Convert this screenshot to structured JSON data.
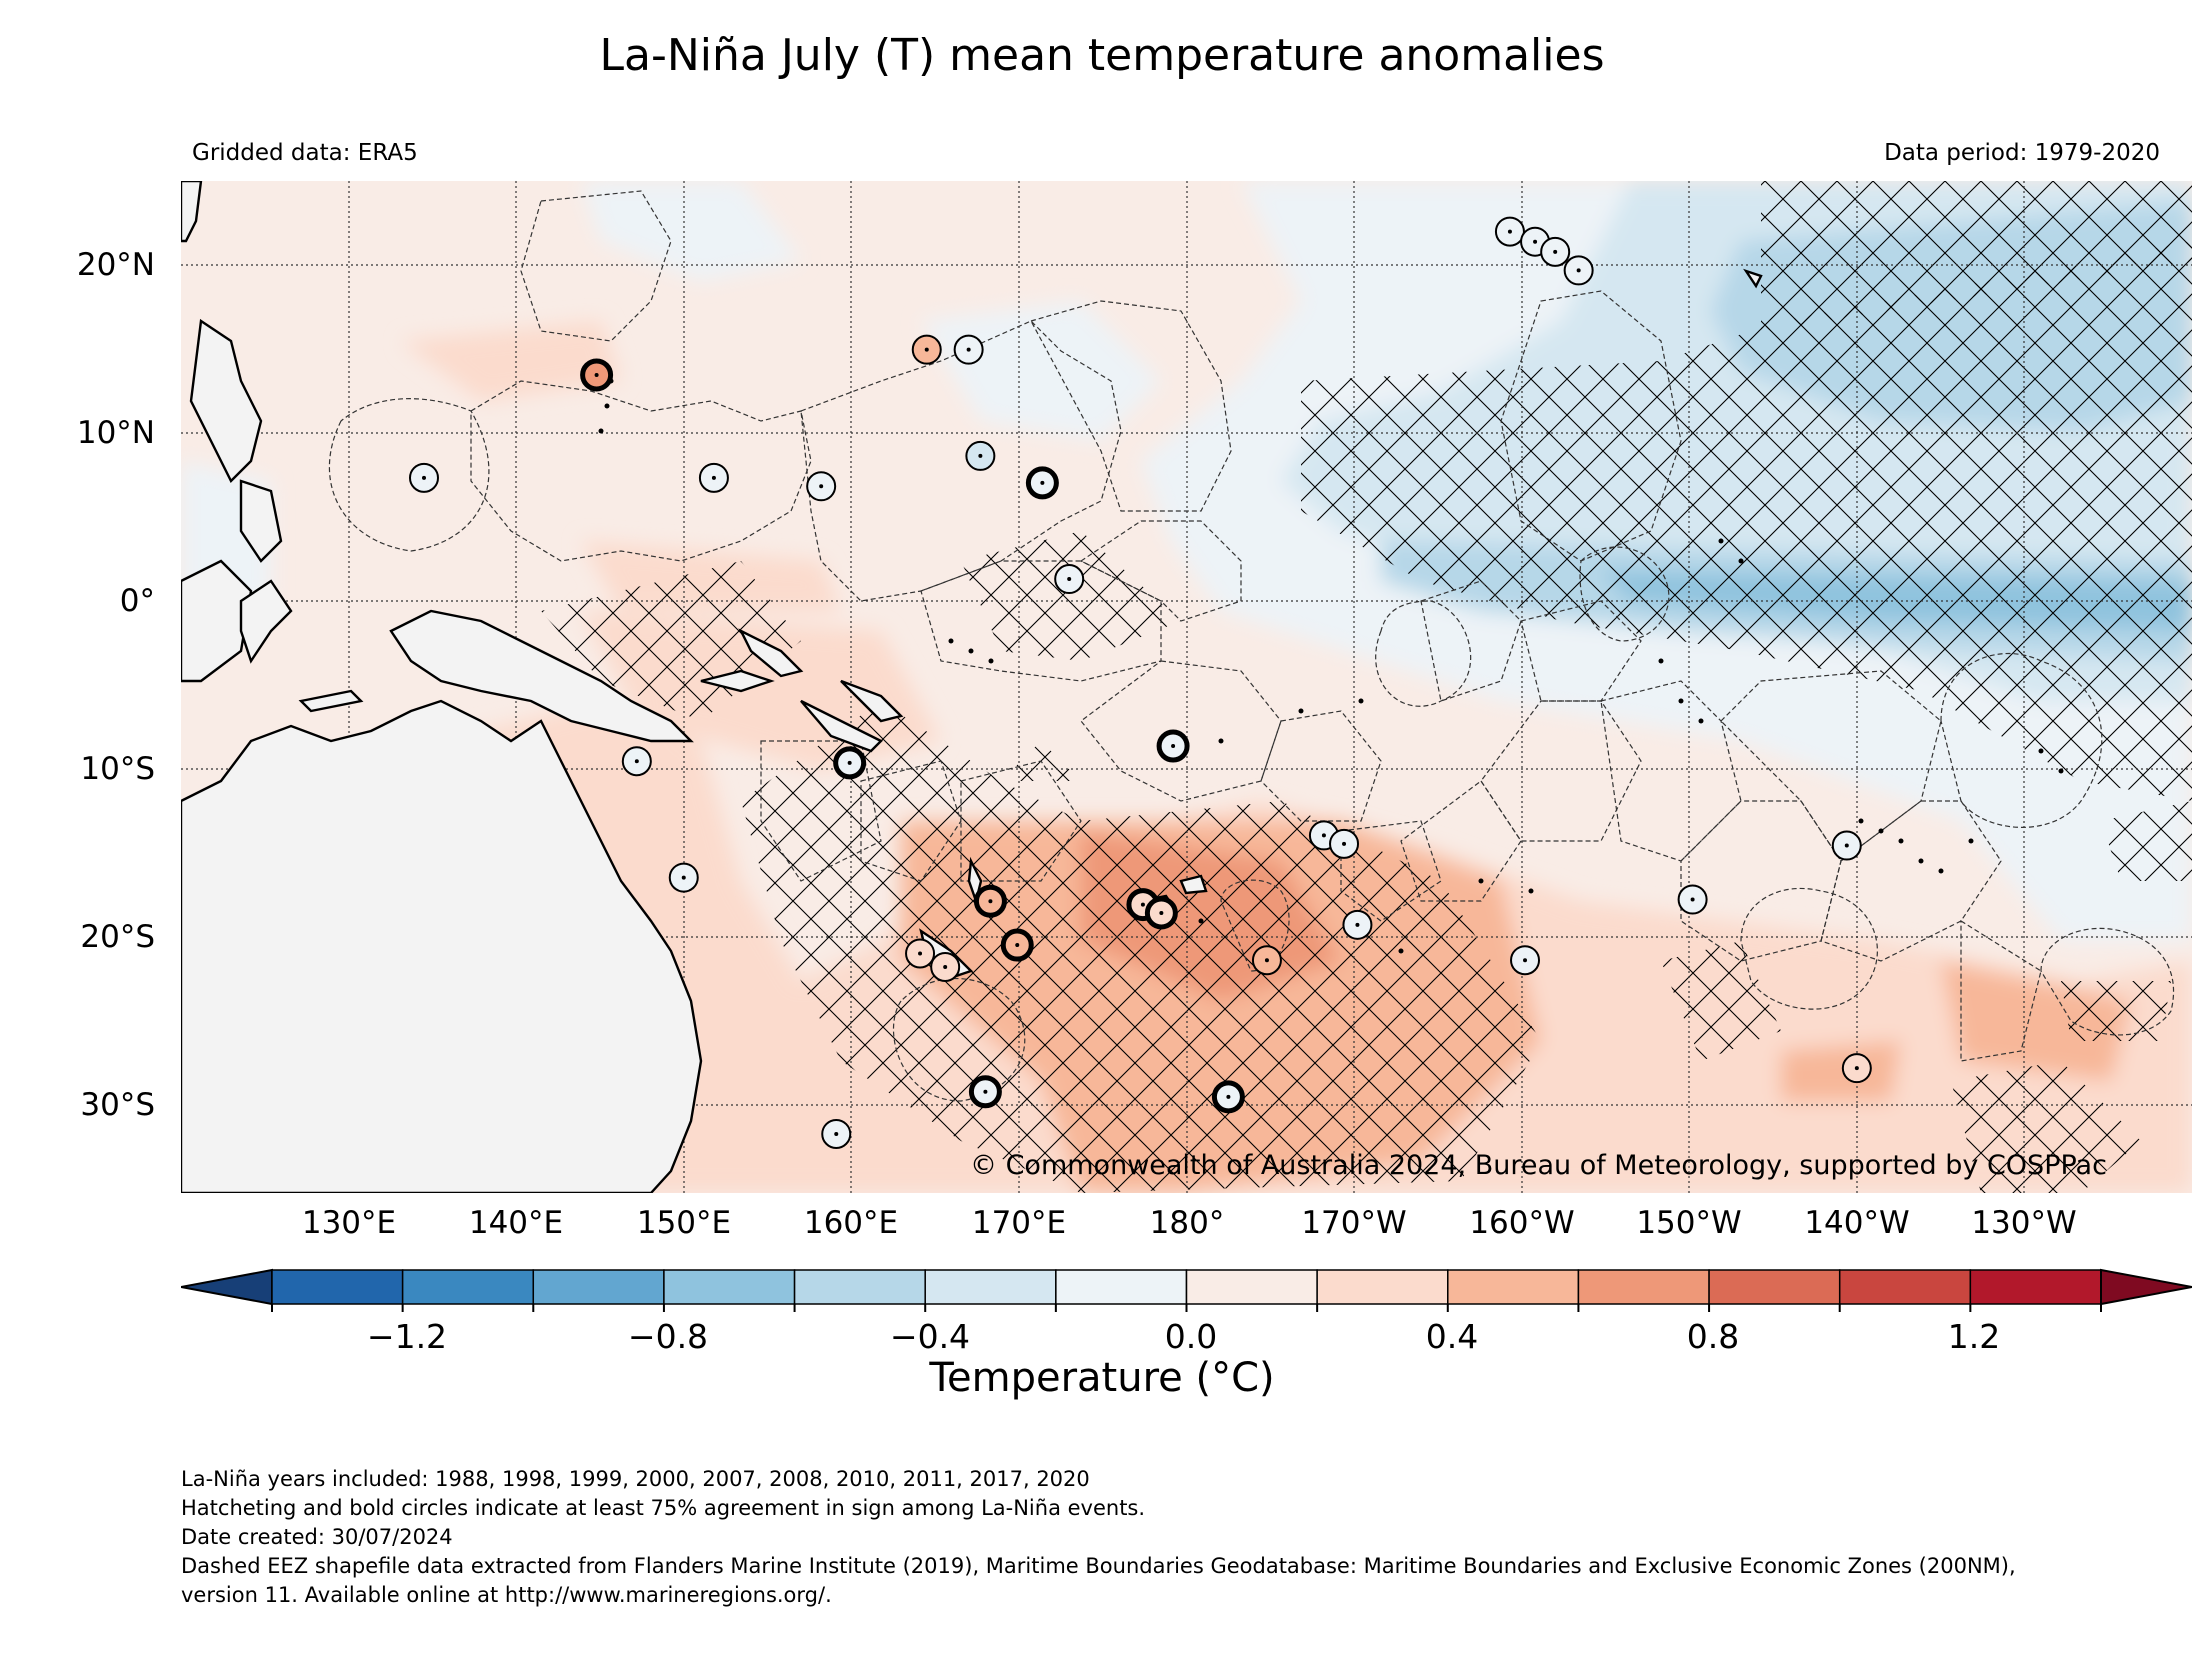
{
  "title": "La-Niña July (T) mean temperature anomalies",
  "header": {
    "source": "Gridded data: ERA5",
    "period": "Data period: 1979-2020"
  },
  "map": {
    "extent": {
      "lon": [
        120,
        240
      ],
      "lat": [
        -35,
        25
      ]
    },
    "lat_labels": [
      "20°N",
      "10°N",
      "0°",
      "10°S",
      "20°S",
      "30°S"
    ],
    "lat_values": [
      20,
      10,
      0,
      -10,
      -20,
      -30
    ],
    "lon_labels": [
      "130°E",
      "140°E",
      "150°E",
      "160°E",
      "170°E",
      "180°",
      "170°W",
      "160°W",
      "150°W",
      "140°W",
      "130°W"
    ],
    "lon_values": [
      130,
      140,
      150,
      160,
      170,
      180,
      190,
      200,
      210,
      220,
      230
    ],
    "copyright": "© Commonwealth of Australia 2024, Bureau of Meteorology, supported by COSPPac",
    "gridlines": true,
    "hatching": "75% sign agreement",
    "station_circles": [
      {
        "lon": 164.5,
        "lat": 15.0,
        "anomaly": 0.5,
        "bold": false
      },
      {
        "lon": 144.8,
        "lat": 13.5,
        "anomaly": 0.6,
        "bold": true
      },
      {
        "lon": 134.5,
        "lat": 7.4,
        "anomaly": 0.0,
        "bold": false
      },
      {
        "lon": 151.8,
        "lat": 7.4,
        "anomaly": 0.0,
        "bold": false
      },
      {
        "lon": 158.2,
        "lat": 6.9,
        "anomaly": 0.0,
        "bold": false
      },
      {
        "lon": 167.7,
        "lat": 8.7,
        "anomaly": -0.2,
        "bold": false
      },
      {
        "lon": 171.4,
        "lat": 7.1,
        "anomaly": 0.0,
        "bold": true
      },
      {
        "lon": 173.0,
        "lat": 1.4,
        "anomaly": 0.0,
        "bold": false
      },
      {
        "lon": 167.0,
        "lat": 15.0,
        "anomaly": 0.0,
        "bold": false
      },
      {
        "lon": 199.3,
        "lat": 22.0,
        "anomaly": 0.0,
        "bold": false
      },
      {
        "lon": 200.8,
        "lat": 21.4,
        "anomaly": 0.0,
        "bold": false
      },
      {
        "lon": 202.0,
        "lat": 20.8,
        "anomaly": 0.0,
        "bold": false
      },
      {
        "lon": 203.4,
        "lat": 19.7,
        "anomaly": 0.0,
        "bold": false
      },
      {
        "lon": 179.2,
        "lat": -8.5,
        "anomaly": 0.0,
        "bold": true
      },
      {
        "lon": 159.9,
        "lat": -9.5,
        "anomaly": 0.0,
        "bold": true
      },
      {
        "lon": 147.2,
        "lat": -9.4,
        "anomaly": 0.0,
        "bold": false
      },
      {
        "lon": 150.0,
        "lat": -16.3,
        "anomaly": 0.0,
        "bold": false
      },
      {
        "lon": 168.3,
        "lat": -17.7,
        "anomaly": 0.5,
        "bold": true
      },
      {
        "lon": 169.9,
        "lat": -20.3,
        "anomaly": 0.5,
        "bold": true
      },
      {
        "lon": 164.1,
        "lat": -20.8,
        "anomaly": 0.4,
        "bold": false
      },
      {
        "lon": 165.6,
        "lat": -21.6,
        "anomaly": 0.4,
        "bold": false
      },
      {
        "lon": 177.4,
        "lat": -17.9,
        "anomaly": 0.4,
        "bold": true
      },
      {
        "lon": 178.5,
        "lat": -18.4,
        "anomaly": 0.4,
        "bold": true
      },
      {
        "lon": 188.2,
        "lat": -13.8,
        "anomaly": 0.0,
        "bold": false
      },
      {
        "lon": 189.4,
        "lat": -14.3,
        "anomaly": 0.0,
        "bold": false
      },
      {
        "lon": 184.8,
        "lat": -21.2,
        "anomaly": 0.5,
        "bold": false
      },
      {
        "lon": 190.2,
        "lat": -19.1,
        "anomaly": 0.0,
        "bold": false
      },
      {
        "lon": 200.2,
        "lat": -21.2,
        "anomaly": 0.0,
        "bold": false
      },
      {
        "lon": 210.2,
        "lat": -17.6,
        "anomaly": 0.0,
        "bold": false
      },
      {
        "lon": 219.4,
        "lat": -14.4,
        "anomaly": 0.0,
        "bold": false
      },
      {
        "lon": 168.0,
        "lat": -29.0,
        "anomaly": 0.0,
        "bold": true
      },
      {
        "lon": 182.5,
        "lat": -29.3,
        "anomaly": 0.0,
        "bold": true
      },
      {
        "lon": 159.1,
        "lat": -31.5,
        "anomaly": 0.0,
        "bold": false
      },
      {
        "lon": 220.0,
        "lat": -27.6,
        "anomaly": 0.4,
        "bold": false
      }
    ]
  },
  "colorbar": {
    "ticks": [
      "−1.2",
      "−0.8",
      "−0.4",
      "0.0",
      "0.4",
      "0.8",
      "1.2"
    ],
    "tick_values": [
      -1.2,
      -0.8,
      -0.4,
      0.0,
      0.4,
      0.8,
      1.2
    ],
    "min": -1.4,
    "max": 1.4,
    "step": 0.2,
    "label": "Temperature (°C)",
    "colors": [
      "#2166ac",
      "#3a88c0",
      "#62a6d0",
      "#8fc3de",
      "#b6d7e8",
      "#d5e7f1",
      "#edf3f7",
      "#f9ece6",
      "#fbdbcd",
      "#f7b799",
      "#ee9878",
      "#db6b55",
      "#c9463f",
      "#b2182b"
    ],
    "extend_low": "#173f77",
    "extend_high": "#7f0a21"
  },
  "footer": {
    "years": "La-Niña years included: 1988, 1998, 1999, 2000, 2007, 2008, 2010, 2011, 2017, 2020",
    "hatch_note": "Hatcheting and bold circles indicate at least 75% agreement in sign among La-Niña events.",
    "date": "Date created: 30/07/2024",
    "eez_1": "Dashed EEZ shapefile data extracted from Flanders Marine Institute (2019), Maritime Boundaries Geodatabase: Maritime Boundaries and Exclusive Economic Zones (200NM),",
    "eez_2": "version 11. Available online at http://www.marineregions.org/."
  }
}
